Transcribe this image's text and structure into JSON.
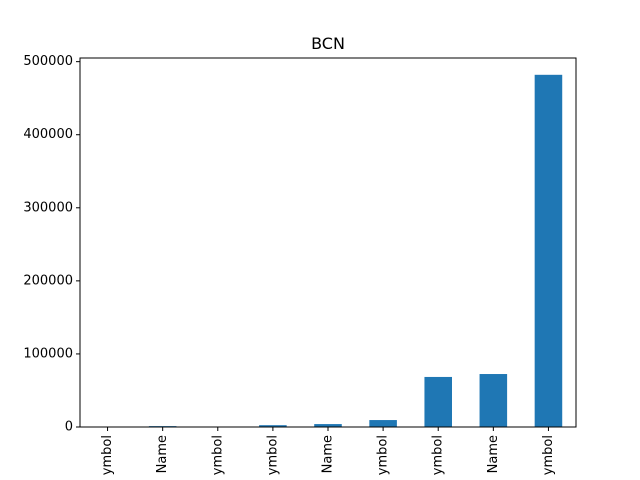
{
  "chart_data": {
    "type": "bar",
    "title": "BCN",
    "xlabel": "",
    "ylabel": "",
    "categories": [
      "ymbol",
      "Name",
      "ymbol",
      "ymbol",
      "Name",
      "ymbol",
      "ymbol",
      "Name",
      "ymbol"
    ],
    "values": [
      300,
      1200,
      500,
      2500,
      4000,
      9500,
      68500,
      72500,
      482000
    ],
    "ylim": [
      0,
      505000
    ],
    "yticks": [
      0,
      100000,
      200000,
      300000,
      400000,
      500000
    ],
    "ytick_labels": [
      "0",
      "100000",
      "200000",
      "300000",
      "400000",
      "500000"
    ],
    "grid": false,
    "legend": "none",
    "bar_color": "#1f77b4"
  }
}
